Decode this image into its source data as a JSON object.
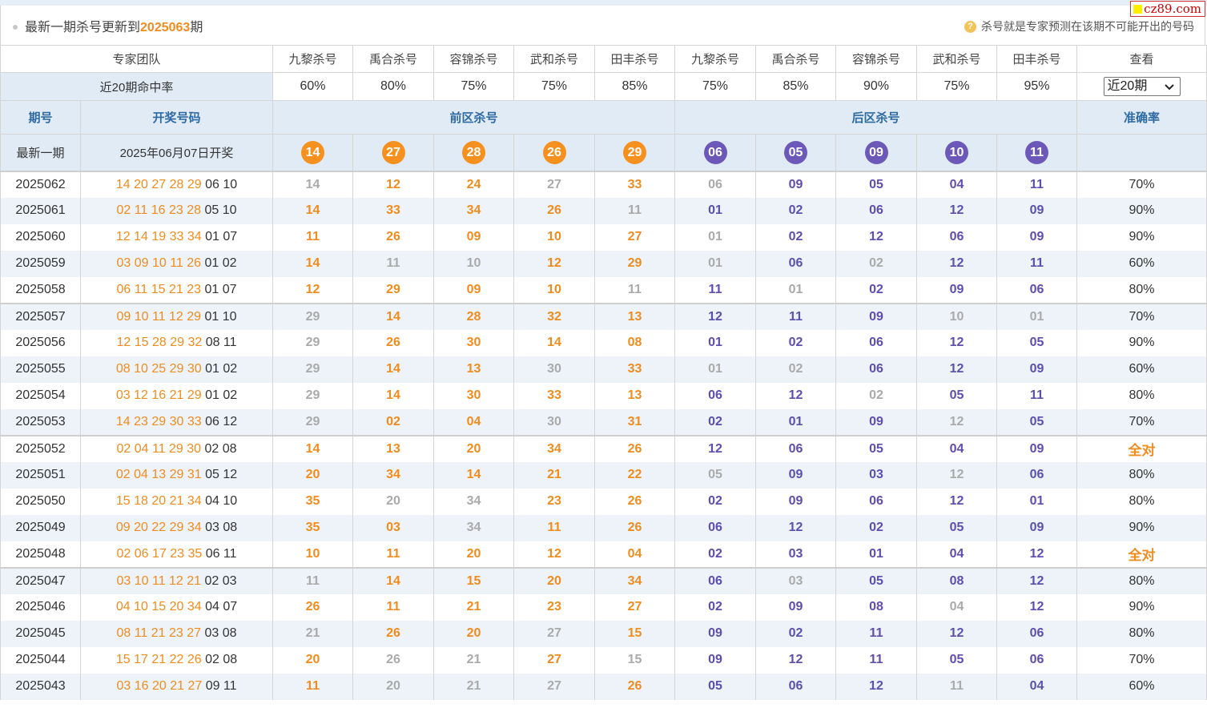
{
  "logo": "cz89.com",
  "header": {
    "title_prefix": "最新一期杀号更新到",
    "title_issue": "2025063",
    "title_suffix": "期",
    "note": "杀号就是专家预测在该期不可能开出的号码",
    "note_icon": "?"
  },
  "experts": {
    "label": "专家团队",
    "names": [
      "九黎杀号",
      "禹合杀号",
      "容锦杀号",
      "武和杀号",
      "田丰杀号",
      "九黎杀号",
      "禹合杀号",
      "容锦杀号",
      "武和杀号",
      "田丰杀号"
    ],
    "view_label": "查看"
  },
  "rates": {
    "label": "近20期命中率",
    "values": [
      "60%",
      "80%",
      "75%",
      "75%",
      "85%",
      "75%",
      "85%",
      "90%",
      "75%",
      "95%"
    ],
    "period_select": "近20期"
  },
  "columns": {
    "issue": "期号",
    "draw": "开奖号码",
    "front": "前区杀号",
    "back": "后区杀号",
    "accuracy": "准确率"
  },
  "latest": {
    "label": "最新一期",
    "date": "2025年06月07日开奖",
    "front_kills": [
      "14",
      "27",
      "28",
      "26",
      "29"
    ],
    "back_kills": [
      "06",
      "05",
      "09",
      "10",
      "11"
    ]
  },
  "rows": [
    {
      "issue": "2025062",
      "front": "14 20 27 28 29",
      "back": "06 10",
      "fk": [
        "14",
        "12",
        "24",
        "27",
        "33"
      ],
      "bk": [
        "06",
        "09",
        "05",
        "04",
        "11"
      ],
      "acc": "70%"
    },
    {
      "issue": "2025061",
      "front": "02 11 16 23 28",
      "back": "05 10",
      "fk": [
        "14",
        "33",
        "34",
        "26",
        "11"
      ],
      "bk": [
        "01",
        "02",
        "06",
        "12",
        "09"
      ],
      "acc": "90%"
    },
    {
      "issue": "2025060",
      "front": "12 14 19 33 34",
      "back": "01 07",
      "fk": [
        "11",
        "26",
        "09",
        "10",
        "27"
      ],
      "bk": [
        "01",
        "02",
        "12",
        "06",
        "09"
      ],
      "acc": "90%"
    },
    {
      "issue": "2025059",
      "front": "03 09 10 11 26",
      "back": "01 02",
      "fk": [
        "14",
        "11",
        "10",
        "12",
        "29"
      ],
      "bk": [
        "01",
        "06",
        "02",
        "12",
        "11"
      ],
      "acc": "60%"
    },
    {
      "issue": "2025058",
      "front": "06 11 15 21 23",
      "back": "01 07",
      "fk": [
        "12",
        "29",
        "09",
        "10",
        "11"
      ],
      "bk": [
        "11",
        "01",
        "02",
        "09",
        "06"
      ],
      "acc": "80%"
    },
    {
      "issue": "2025057",
      "front": "09 10 11 12 29",
      "back": "01 10",
      "fk": [
        "29",
        "14",
        "28",
        "32",
        "13"
      ],
      "bk": [
        "12",
        "11",
        "09",
        "10",
        "01"
      ],
      "acc": "70%"
    },
    {
      "issue": "2025056",
      "front": "12 15 28 29 32",
      "back": "08 11",
      "fk": [
        "29",
        "26",
        "30",
        "14",
        "08"
      ],
      "bk": [
        "01",
        "02",
        "06",
        "12",
        "05"
      ],
      "acc": "90%"
    },
    {
      "issue": "2025055",
      "front": "08 10 25 29 30",
      "back": "01 02",
      "fk": [
        "29",
        "14",
        "13",
        "30",
        "33"
      ],
      "bk": [
        "01",
        "02",
        "06",
        "12",
        "09"
      ],
      "acc": "60%"
    },
    {
      "issue": "2025054",
      "front": "03 12 16 21 29",
      "back": "01 02",
      "fk": [
        "29",
        "14",
        "30",
        "33",
        "13"
      ],
      "bk": [
        "06",
        "12",
        "02",
        "05",
        "11"
      ],
      "acc": "80%"
    },
    {
      "issue": "2025053",
      "front": "14 23 29 30 33",
      "back": "06 12",
      "fk": [
        "29",
        "02",
        "04",
        "30",
        "31"
      ],
      "bk": [
        "02",
        "01",
        "09",
        "12",
        "05"
      ],
      "acc": "70%"
    },
    {
      "issue": "2025052",
      "front": "02 04 11 29 30",
      "back": "02 08",
      "fk": [
        "14",
        "13",
        "20",
        "34",
        "26"
      ],
      "bk": [
        "12",
        "06",
        "05",
        "04",
        "09"
      ],
      "acc": "全对"
    },
    {
      "issue": "2025051",
      "front": "02 04 13 29 31",
      "back": "05 12",
      "fk": [
        "20",
        "34",
        "14",
        "21",
        "22"
      ],
      "bk": [
        "05",
        "09",
        "03",
        "12",
        "06"
      ],
      "acc": "80%"
    },
    {
      "issue": "2025050",
      "front": "15 18 20 21 34",
      "back": "04 10",
      "fk": [
        "35",
        "20",
        "34",
        "23",
        "26"
      ],
      "bk": [
        "02",
        "09",
        "06",
        "12",
        "01"
      ],
      "acc": "80%"
    },
    {
      "issue": "2025049",
      "front": "09 20 22 29 34",
      "back": "03 08",
      "fk": [
        "35",
        "03",
        "34",
        "11",
        "26"
      ],
      "bk": [
        "06",
        "12",
        "02",
        "05",
        "09"
      ],
      "acc": "90%"
    },
    {
      "issue": "2025048",
      "front": "02 06 17 23 35",
      "back": "06 11",
      "fk": [
        "10",
        "11",
        "20",
        "12",
        "04"
      ],
      "bk": [
        "02",
        "03",
        "01",
        "04",
        "12"
      ],
      "acc": "全对"
    },
    {
      "issue": "2025047",
      "front": "03 10 11 12 21",
      "back": "02 03",
      "fk": [
        "11",
        "14",
        "15",
        "20",
        "34"
      ],
      "bk": [
        "06",
        "03",
        "05",
        "08",
        "12"
      ],
      "acc": "80%"
    },
    {
      "issue": "2025046",
      "front": "04 10 15 20 34",
      "back": "04 07",
      "fk": [
        "26",
        "11",
        "21",
        "23",
        "27"
      ],
      "bk": [
        "02",
        "09",
        "08",
        "04",
        "12"
      ],
      "acc": "90%"
    },
    {
      "issue": "2025045",
      "front": "08 11 21 23 27",
      "back": "03 08",
      "fk": [
        "21",
        "26",
        "20",
        "27",
        "15"
      ],
      "bk": [
        "09",
        "02",
        "11",
        "12",
        "06"
      ],
      "acc": "80%"
    },
    {
      "issue": "2025044",
      "front": "15 17 21 22 26",
      "back": "02 08",
      "fk": [
        "20",
        "26",
        "21",
        "27",
        "15"
      ],
      "bk": [
        "09",
        "12",
        "11",
        "05",
        "06"
      ],
      "acc": "70%"
    },
    {
      "issue": "2025043",
      "front": "03 16 20 21 27",
      "back": "09 11",
      "fk": [
        "11",
        "20",
        "21",
        "27",
        "26"
      ],
      "bk": [
        "05",
        "06",
        "12",
        "11",
        "04"
      ],
      "acc": "60%"
    }
  ]
}
